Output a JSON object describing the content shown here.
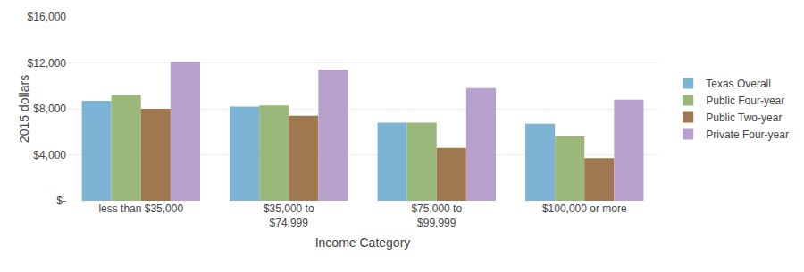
{
  "chart_data": {
    "type": "bar",
    "categories": [
      "less than $35,000",
      "$35,000 to\n$74,999",
      "$75,000 to\n$99,999",
      "$100,000 or more"
    ],
    "series": [
      {
        "name": "Texas Overall",
        "color": "#7db3d4",
        "values": [
          8700,
          8200,
          6800,
          6700
        ]
      },
      {
        "name": "Public Four-year",
        "color": "#9ab87a",
        "values": [
          9200,
          8300,
          6800,
          5600
        ]
      },
      {
        "name": "Public Two-year",
        "color": "#a07850",
        "values": [
          8000,
          7400,
          4600,
          3700
        ]
      },
      {
        "name": "Private Four-year",
        "color": "#b8a0cc",
        "values": [
          12100,
          11400,
          9800,
          8800
        ]
      }
    ],
    "xlabel": "Income Category",
    "ylabel": "2015 dollars",
    "ylim": [
      0,
      16000
    ],
    "yticks": [
      {
        "value": 0,
        "label": "$-"
      },
      {
        "value": 4000,
        "label": "$4,000"
      },
      {
        "value": 8000,
        "label": "$8,000"
      },
      {
        "value": 12000,
        "label": "$12,000"
      },
      {
        "value": 16000,
        "label": "$16,000"
      }
    ],
    "grid": true,
    "legend": "right"
  }
}
